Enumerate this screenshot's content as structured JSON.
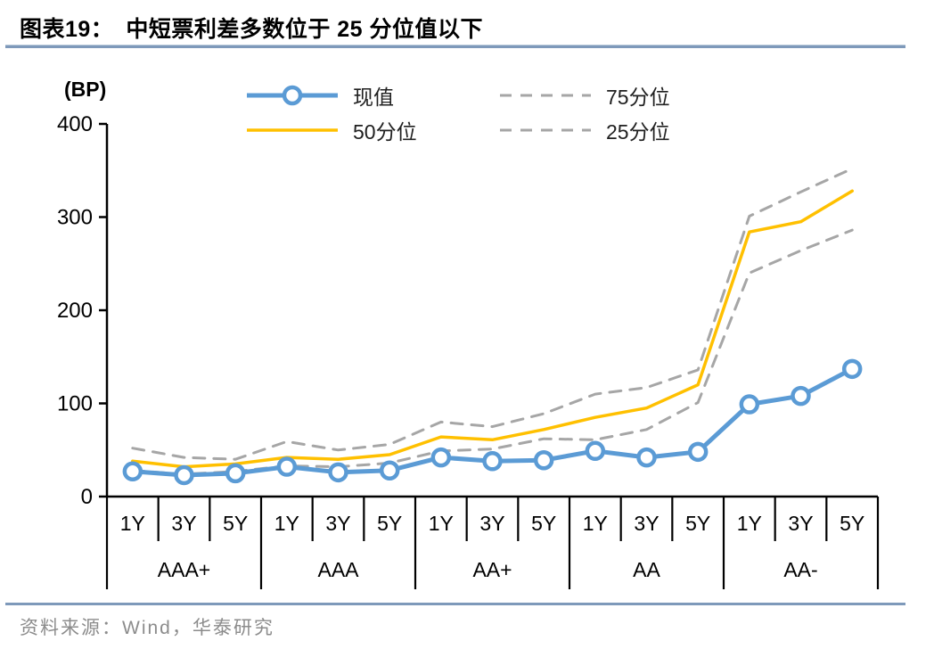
{
  "header": {
    "title_prefix": "图表19：",
    "title_text": "中短票利差多数位于 25 分位值以下"
  },
  "footer": {
    "source_text": "资料来源：Wind，华泰研究"
  },
  "colors": {
    "current_blue": "#5B9BD5",
    "median_yellow": "#FFC000",
    "percentile_gray": "#A6A6A6",
    "divider_blue": "#7E99BA",
    "source_gray": "#8C8C8C",
    "axis_black": "#000000"
  },
  "legend": [
    {
      "key": "current",
      "label": "现值",
      "type": "line-marker",
      "color": "#5B9BD5"
    },
    {
      "key": "p50",
      "label": "50分位",
      "type": "line",
      "color": "#FFC000"
    },
    {
      "key": "p75",
      "label": "75分位",
      "type": "dashed",
      "color": "#A6A6A6"
    },
    {
      "key": "p25",
      "label": "25分位",
      "type": "dashed",
      "color": "#A6A6A6"
    }
  ],
  "chart_data": {
    "type": "line",
    "title": "中短票利差多数位于 25 分位值以下",
    "unit_label": "(BP)",
    "ylabel": "BP",
    "ylim": [
      0,
      400
    ],
    "yticks": [
      0,
      100,
      200,
      300,
      400
    ],
    "grid": false,
    "legend_position": "top",
    "groups": [
      {
        "label": "AAA+",
        "tenors": [
          "1Y",
          "3Y",
          "5Y"
        ]
      },
      {
        "label": "AAA",
        "tenors": [
          "1Y",
          "3Y",
          "5Y"
        ]
      },
      {
        "label": "AA+",
        "tenors": [
          "1Y",
          "3Y",
          "5Y"
        ]
      },
      {
        "label": "AA",
        "tenors": [
          "1Y",
          "3Y",
          "5Y"
        ]
      },
      {
        "label": "AA-",
        "tenors": [
          "1Y",
          "3Y",
          "5Y"
        ]
      }
    ],
    "categories": [
      "AAA+ 1Y",
      "AAA+ 3Y",
      "AAA+ 5Y",
      "AAA 1Y",
      "AAA 3Y",
      "AAA 5Y",
      "AA+ 1Y",
      "AA+ 3Y",
      "AA+ 5Y",
      "AA 1Y",
      "AA 3Y",
      "AA 5Y",
      "AA- 1Y",
      "AA- 3Y",
      "AA- 5Y"
    ],
    "series": [
      {
        "key": "current",
        "name": "现值",
        "style": "solid-marker",
        "color": "#5B9BD5",
        "values": [
          27,
          23,
          25,
          32,
          26,
          28,
          42,
          38,
          39,
          49,
          42,
          48,
          99,
          108,
          137
        ]
      },
      {
        "key": "p50",
        "name": "50分位",
        "style": "solid",
        "color": "#FFC000",
        "values": [
          38,
          32,
          35,
          42,
          40,
          45,
          64,
          61,
          72,
          85,
          95,
          120,
          284,
          295,
          328
        ]
      },
      {
        "key": "p75",
        "name": "75分位",
        "style": "dashed",
        "color": "#A6A6A6",
        "values": [
          52,
          42,
          40,
          59,
          50,
          56,
          80,
          75,
          89,
          110,
          117,
          136,
          301,
          327,
          352
        ]
      },
      {
        "key": "p25",
        "name": "25分位",
        "style": "dashed",
        "color": "#A6A6A6",
        "values": [
          28,
          24,
          27,
          33,
          32,
          36,
          49,
          51,
          62,
          61,
          72,
          101,
          240,
          264,
          286
        ]
      }
    ]
  }
}
